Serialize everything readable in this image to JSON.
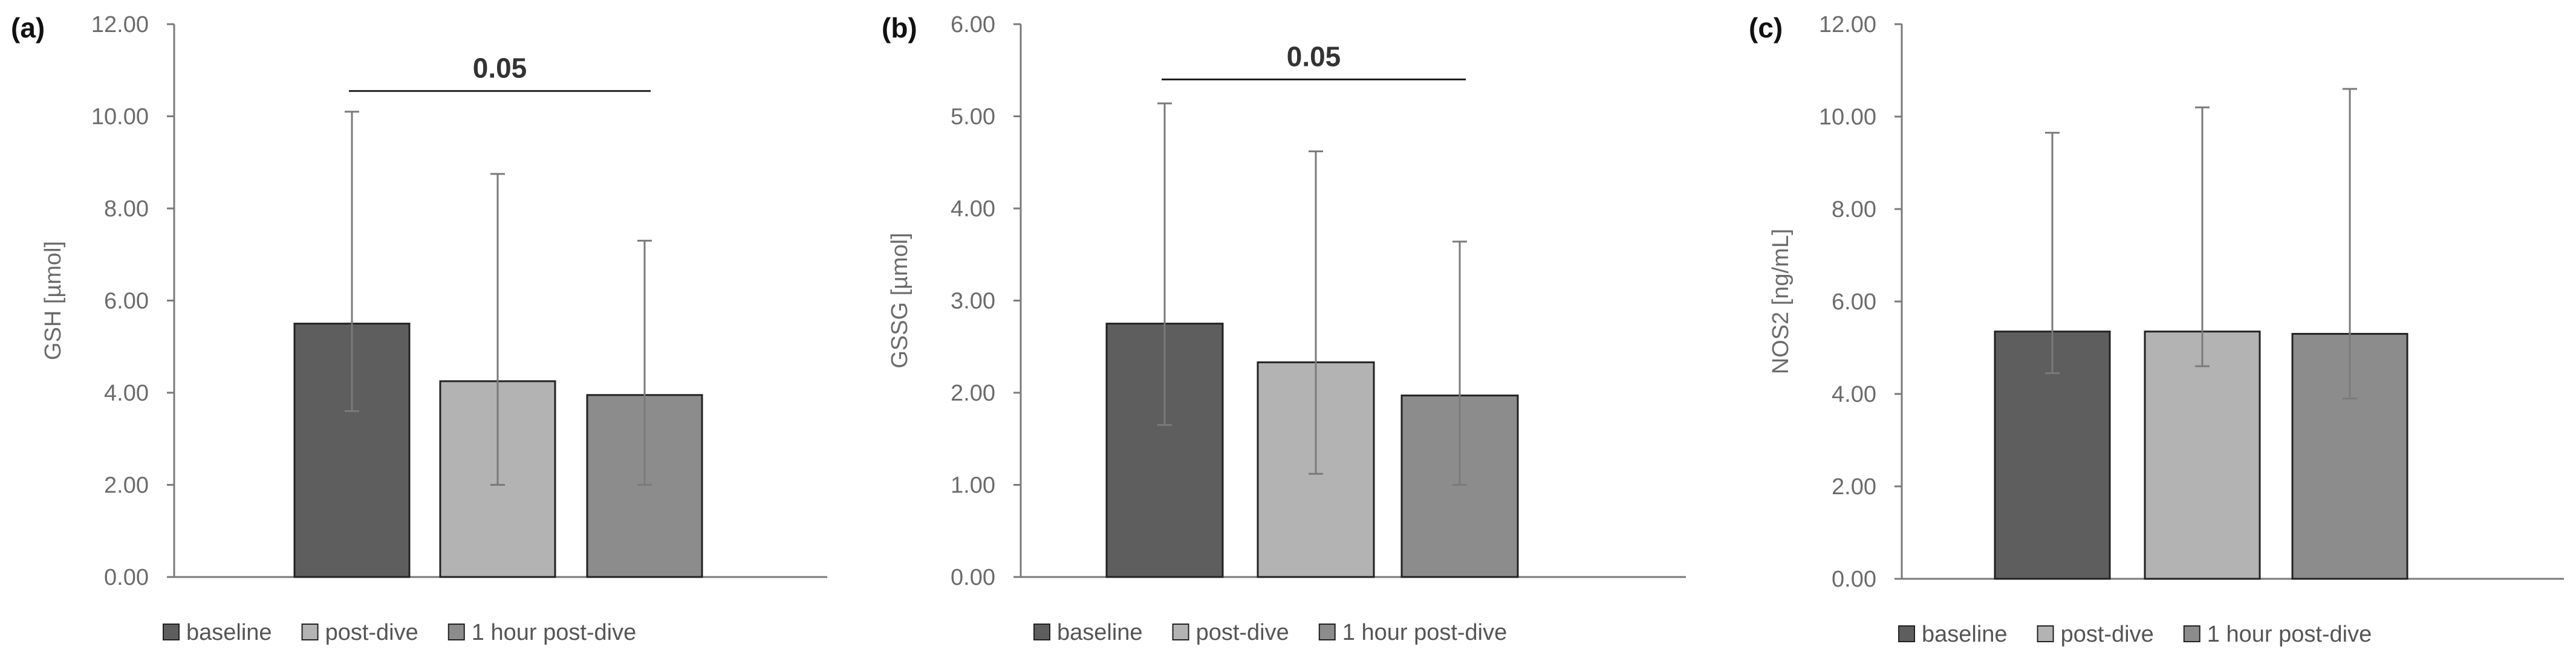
{
  "colors": {
    "baseline": "#5e5e5e",
    "post_dive": "#b3b3b3",
    "one_hour": "#8c8c8c",
    "axis": "#7a7a7a",
    "error_bar": "#7a7a7a",
    "bar_border": "#222222"
  },
  "chart_data": [
    {
      "type": "bar",
      "panel_label": "(a)",
      "ylabel": "GSH [µmol]",
      "ylim": [
        0,
        12
      ],
      "yticks": [
        "0.00",
        "2.00",
        "4.00",
        "6.00",
        "8.00",
        "10.00",
        "12.00"
      ],
      "ytick_values": [
        0,
        2,
        4,
        6,
        8,
        10,
        12
      ],
      "categories": [
        "baseline",
        "post-dive",
        "1 hour post-dive"
      ],
      "values": [
        5.5,
        4.25,
        3.95
      ],
      "error_upper": [
        10.1,
        8.75,
        7.3
      ],
      "error_lower": [
        3.6,
        2.0,
        2.0
      ],
      "significance": {
        "label": "0.05",
        "from": 0,
        "to": 2,
        "y": 10.55
      },
      "legend": [
        "baseline",
        "post-dive",
        "1 hour post-dive"
      ],
      "legend_position": "bottom"
    },
    {
      "type": "bar",
      "panel_label": "(b)",
      "ylabel": "GSSG [µmol]",
      "ylim": [
        0,
        6
      ],
      "yticks": [
        "0.00",
        "1.00",
        "2.00",
        "3.00",
        "4.00",
        "5.00",
        "6.00"
      ],
      "ytick_values": [
        0,
        1,
        2,
        3,
        4,
        5,
        6
      ],
      "categories": [
        "baseline",
        "post-dive",
        "1 hour post-dive"
      ],
      "values": [
        2.75,
        2.33,
        1.97
      ],
      "error_upper": [
        5.14,
        4.62,
        3.64
      ],
      "error_lower": [
        1.65,
        1.12,
        1.0
      ],
      "significance": {
        "label": "0.05",
        "from": 0,
        "to": 2,
        "y": 5.4
      },
      "legend": [
        "baseline",
        "post-dive",
        "1 hour post-dive"
      ],
      "legend_position": "bottom"
    },
    {
      "type": "bar",
      "panel_label": "(c)",
      "ylabel": "NOS2 [ng/mL]",
      "ylim": [
        0,
        12
      ],
      "yticks": [
        "0.00",
        "2.00",
        "4.00",
        "6.00",
        "8.00",
        "10.00",
        "12.00"
      ],
      "ytick_values": [
        0,
        2,
        4,
        6,
        8,
        10,
        12
      ],
      "categories": [
        "baseline",
        "post-dive",
        "1 hour post-dive"
      ],
      "values": [
        5.35,
        5.35,
        5.3
      ],
      "error_upper": [
        9.65,
        10.2,
        10.6
      ],
      "error_lower": [
        4.45,
        4.6,
        3.9
      ],
      "significance": null,
      "legend": [
        "baseline",
        "post-dive",
        "1 hour post-dive"
      ],
      "legend_position": "bottom"
    }
  ]
}
